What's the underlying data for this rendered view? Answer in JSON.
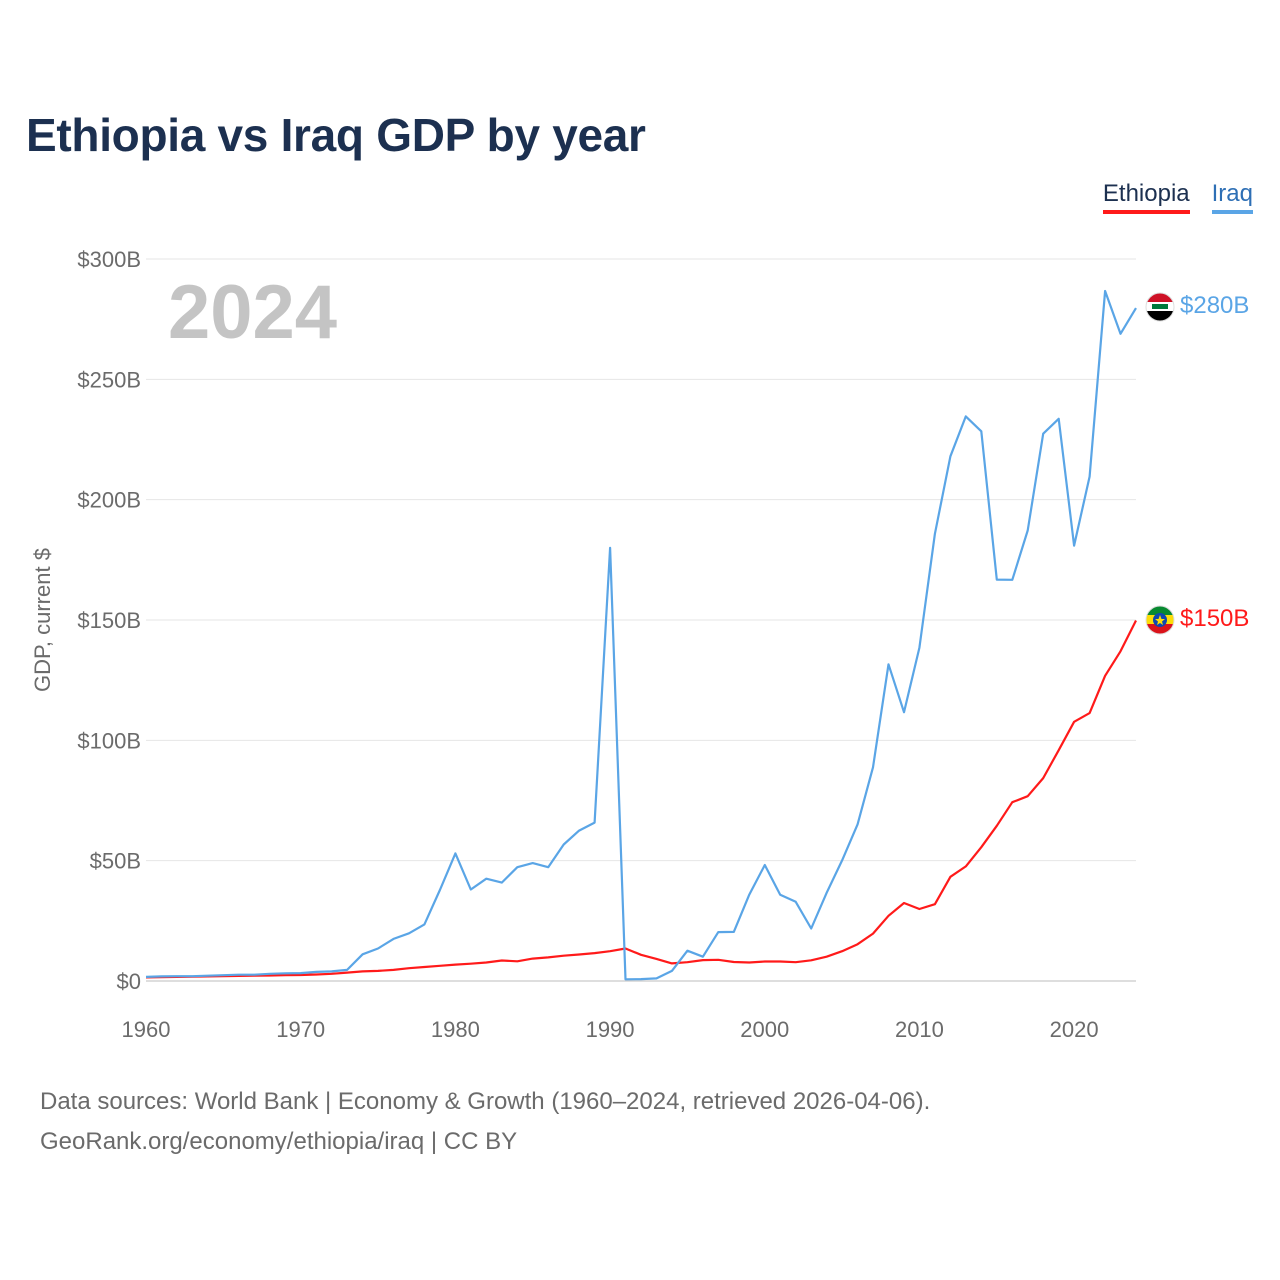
{
  "title": "Ethiopia vs Iraq GDP by year",
  "legend": [
    {
      "name": "Ethiopia",
      "color": "#ff1a1a"
    },
    {
      "name": "Iraq",
      "color": "#5aa5e6"
    }
  ],
  "year_label": "2024",
  "footer": {
    "line1": "Data sources: World Bank | Economy & Growth (1960–2024, retrieved 2026-04-06).",
    "line2": "GeoRank.org/economy/ethiopia/iraq | CC BY"
  },
  "chart_data": {
    "type": "line",
    "title": "Ethiopia vs Iraq GDP by year",
    "xlabel": "",
    "ylabel": "GDP, current $",
    "xlim": [
      1960,
      2024
    ],
    "ylim": [
      0,
      300
    ],
    "y_unit": "billions USD",
    "x_ticks": [
      1960,
      1970,
      1980,
      1990,
      2000,
      2010,
      2020
    ],
    "x_tick_labels": [
      "1960",
      "1970",
      "1980",
      "1990",
      "2000",
      "2010",
      "2020"
    ],
    "y_ticks": [
      0,
      50,
      100,
      150,
      200,
      250,
      300
    ],
    "y_tick_labels": [
      "$0",
      "$50B",
      "$100B",
      "$150B",
      "$200B",
      "$250B",
      "$300B"
    ],
    "grid": true,
    "legend_position": "top-right",
    "series": [
      {
        "name": "Ethiopia",
        "color": "#ff1a1a",
        "end_label": "$150B",
        "start_year": 1960,
        "values": [
          1.5,
          1.6,
          1.7,
          1.8,
          1.9,
          2.0,
          2.1,
          2.2,
          2.3,
          2.4,
          2.5,
          2.7,
          3.0,
          3.5,
          4.0,
          4.2,
          4.6,
          5.3,
          5.8,
          6.3,
          6.8,
          7.2,
          7.7,
          8.5,
          8.2,
          9.3,
          9.8,
          10.5,
          11.0,
          11.6,
          12.4,
          13.5,
          10.9,
          9.2,
          7.3,
          7.8,
          8.7,
          8.8,
          7.9,
          7.7,
          8.1,
          8.1,
          7.8,
          8.6,
          10.1,
          12.4,
          15.3,
          19.7,
          27.1,
          32.4,
          29.9,
          31.9,
          43.3,
          47.6,
          55.6,
          64.5,
          74.3,
          76.8,
          84.3,
          95.9,
          107.7,
          111.3,
          126.8,
          137.0,
          149.8
        ]
      },
      {
        "name": "Iraq",
        "color": "#5aa5e6",
        "end_label": "$280B",
        "start_year": 1960,
        "values": [
          1.7,
          1.9,
          2.0,
          2.0,
          2.2,
          2.4,
          2.6,
          2.6,
          3.0,
          3.2,
          3.3,
          3.8,
          4.0,
          4.6,
          11.1,
          13.5,
          17.5,
          19.8,
          23.5,
          37.8,
          53.0,
          38.0,
          42.5,
          40.9,
          47.3,
          49.0,
          47.3,
          56.7,
          62.5,
          65.8,
          180.0,
          0.7,
          0.8,
          1.1,
          4.2,
          12.6,
          10.1,
          20.3,
          20.4,
          35.9,
          48.2,
          35.8,
          32.9,
          21.8,
          36.6,
          50.1,
          65.1,
          88.8,
          131.6,
          111.7,
          138.5,
          185.8,
          218.0,
          234.6,
          228.4,
          166.8,
          166.7,
          187.2,
          227.4,
          233.6,
          180.9,
          209.6,
          286.7,
          268.9,
          279.6
        ]
      }
    ]
  }
}
